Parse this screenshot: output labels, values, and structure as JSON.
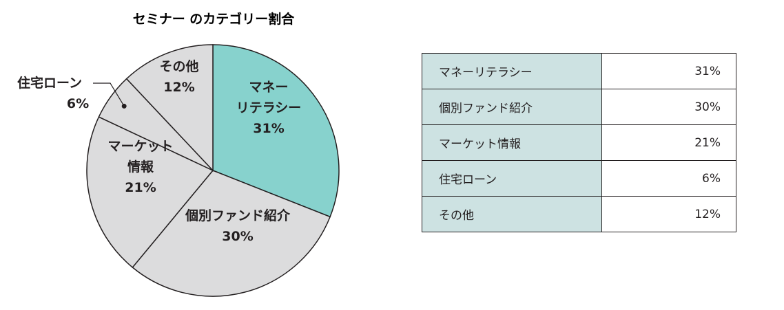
{
  "chart_data": {
    "type": "pie",
    "title": "セミナー のカテゴリー割合",
    "slices": [
      {
        "name": "マネーリテラシー",
        "lines": [
          "マネー",
          "リテラシー"
        ],
        "value": 31,
        "value_label": "31%",
        "color": "#87d2cd",
        "highlight": true
      },
      {
        "name": "個別ファンド紹介",
        "lines": [
          "個別ファンド紹介"
        ],
        "value": 30,
        "value_label": "30%",
        "color": "#dcdcdd"
      },
      {
        "name": "マーケット情報",
        "lines": [
          "マーケット",
          "情報"
        ],
        "value": 21,
        "value_label": "21%",
        "color": "#dcdcdd"
      },
      {
        "name": "住宅ローン",
        "lines": [
          "住宅ローン"
        ],
        "value": 6,
        "value_label": "6%",
        "color": "#dcdcdd",
        "callout": true
      },
      {
        "name": "その他",
        "lines": [
          "その他"
        ],
        "value": 12,
        "value_label": "12%",
        "color": "#dcdcdd"
      }
    ],
    "start": "top",
    "direction": "clockwise"
  },
  "table": {
    "rows": [
      {
        "category": "マネーリテラシー",
        "value": "31%"
      },
      {
        "category": "個別ファンド紹介",
        "value": "30%"
      },
      {
        "category": "マーケット情報",
        "value": "21%"
      },
      {
        "category": "住宅ローン",
        "value": "6%"
      },
      {
        "category": "その他",
        "value": "12%"
      }
    ],
    "category_cell_color": "#cde2e2"
  }
}
